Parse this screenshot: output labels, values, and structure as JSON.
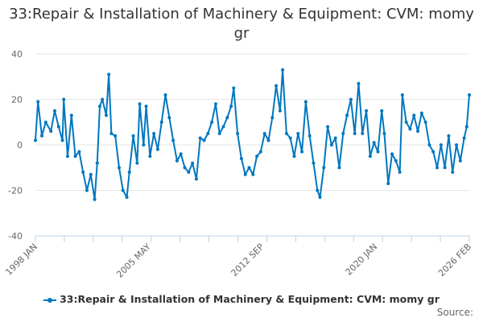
{
  "chart_data": {
    "type": "line",
    "title": "33:Repair & Installation of Machinery & Equipment: CVM: momy gr",
    "xlabel": "",
    "ylabel": "",
    "ylim": [
      -40,
      40
    ],
    "yticks": [
      40,
      20,
      0,
      -20,
      -40
    ],
    "xlim": [
      "1998-01",
      "2026-02"
    ],
    "xtick_labels": [
      "1998 JAN",
      "2005 MAY",
      "2012 SEP",
      "2020 JAN",
      "2026 FEB"
    ],
    "grid": "horizontal",
    "legend_position": "bottom",
    "color": "#0077bf",
    "series": [
      {
        "name": "33:Repair & Installation of Machinery & Equipment: CVM: momy gr",
        "points": [
          [
            "1998-01",
            2
          ],
          [
            "1998-03",
            19
          ],
          [
            "1998-06",
            4
          ],
          [
            "1998-09",
            10
          ],
          [
            "1999-01",
            6
          ],
          [
            "1999-04",
            15
          ],
          [
            "1999-07",
            8
          ],
          [
            "1999-10",
            2
          ],
          [
            "1999-11",
            20
          ],
          [
            "2000-02",
            -5
          ],
          [
            "2000-05",
            13
          ],
          [
            "2000-08",
            -5
          ],
          [
            "2000-11",
            -3
          ],
          [
            "2001-02",
            -12
          ],
          [
            "2001-05",
            -20
          ],
          [
            "2001-08",
            -13
          ],
          [
            "2001-11",
            -24
          ],
          [
            "2002-01",
            -8
          ],
          [
            "2002-03",
            17
          ],
          [
            "2002-05",
            20
          ],
          [
            "2002-08",
            13
          ],
          [
            "2002-10",
            31
          ],
          [
            "2002-12",
            5
          ],
          [
            "2003-03",
            4
          ],
          [
            "2003-06",
            -10
          ],
          [
            "2003-09",
            -20
          ],
          [
            "2003-12",
            -23
          ],
          [
            "2004-02",
            -12
          ],
          [
            "2004-05",
            4
          ],
          [
            "2004-08",
            -8
          ],
          [
            "2004-10",
            18
          ],
          [
            "2005-01",
            0
          ],
          [
            "2005-03",
            17
          ],
          [
            "2005-06",
            -5
          ],
          [
            "2005-09",
            5
          ],
          [
            "2005-12",
            -2
          ],
          [
            "2006-03",
            10
          ],
          [
            "2006-06",
            22
          ],
          [
            "2006-09",
            12
          ],
          [
            "2006-12",
            2
          ],
          [
            "2007-03",
            -7
          ],
          [
            "2007-06",
            -4
          ],
          [
            "2007-09",
            -10
          ],
          [
            "2007-12",
            -12
          ],
          [
            "2008-03",
            -8
          ],
          [
            "2008-06",
            -15
          ],
          [
            "2008-09",
            3
          ],
          [
            "2008-12",
            2
          ],
          [
            "2009-03",
            5
          ],
          [
            "2009-06",
            10
          ],
          [
            "2009-09",
            18
          ],
          [
            "2009-12",
            5
          ],
          [
            "2010-03",
            8
          ],
          [
            "2010-06",
            12
          ],
          [
            "2010-09",
            17
          ],
          [
            "2010-11",
            25
          ],
          [
            "2011-02",
            5
          ],
          [
            "2011-05",
            -6
          ],
          [
            "2011-08",
            -13
          ],
          [
            "2011-11",
            -10
          ],
          [
            "2012-02",
            -13
          ],
          [
            "2012-05",
            -5
          ],
          [
            "2012-08",
            -3
          ],
          [
            "2012-11",
            5
          ],
          [
            "2013-02",
            2
          ],
          [
            "2013-05",
            12
          ],
          [
            "2013-08",
            26
          ],
          [
            "2013-11",
            15
          ],
          [
            "2014-01",
            33
          ],
          [
            "2014-04",
            5
          ],
          [
            "2014-07",
            3
          ],
          [
            "2014-10",
            -5
          ],
          [
            "2015-01",
            5
          ],
          [
            "2015-04",
            -3
          ],
          [
            "2015-07",
            19
          ],
          [
            "2015-10",
            4
          ],
          [
            "2016-01",
            -8
          ],
          [
            "2016-04",
            -20
          ],
          [
            "2016-06",
            -23
          ],
          [
            "2016-09",
            -10
          ],
          [
            "2016-12",
            8
          ],
          [
            "2017-03",
            0
          ],
          [
            "2017-06",
            3
          ],
          [
            "2017-09",
            -10
          ],
          [
            "2017-12",
            5
          ],
          [
            "2018-03",
            13
          ],
          [
            "2018-06",
            20
          ],
          [
            "2018-09",
            5
          ],
          [
            "2018-12",
            27
          ],
          [
            "2019-03",
            5
          ],
          [
            "2019-06",
            15
          ],
          [
            "2019-09",
            -5
          ],
          [
            "2019-12",
            1
          ],
          [
            "2020-03",
            -3
          ],
          [
            "2020-06",
            15
          ],
          [
            "2020-08",
            5
          ],
          [
            "2020-11",
            -17
          ],
          [
            "2021-02",
            -4
          ],
          [
            "2021-05",
            -7
          ],
          [
            "2021-08",
            -12
          ],
          [
            "2021-10",
            22
          ],
          [
            "2022-01",
            10
          ],
          [
            "2022-04",
            7
          ],
          [
            "2022-07",
            13
          ],
          [
            "2022-10",
            6
          ],
          [
            "2023-01",
            14
          ],
          [
            "2023-04",
            10
          ],
          [
            "2023-07",
            0
          ],
          [
            "2023-10",
            -3
          ],
          [
            "2024-01",
            -10
          ],
          [
            "2024-04",
            0
          ],
          [
            "2024-07",
            -10
          ],
          [
            "2024-10",
            4
          ],
          [
            "2025-01",
            -12
          ],
          [
            "2025-04",
            0
          ],
          [
            "2025-07",
            -7
          ],
          [
            "2025-10",
            3
          ],
          [
            "2025-12",
            8
          ],
          [
            "2026-02",
            22
          ]
        ]
      }
    ]
  },
  "legend_label": "33:Repair & Installation of Machinery & Equipment: CVM: momy gr",
  "source_label": "Source:"
}
